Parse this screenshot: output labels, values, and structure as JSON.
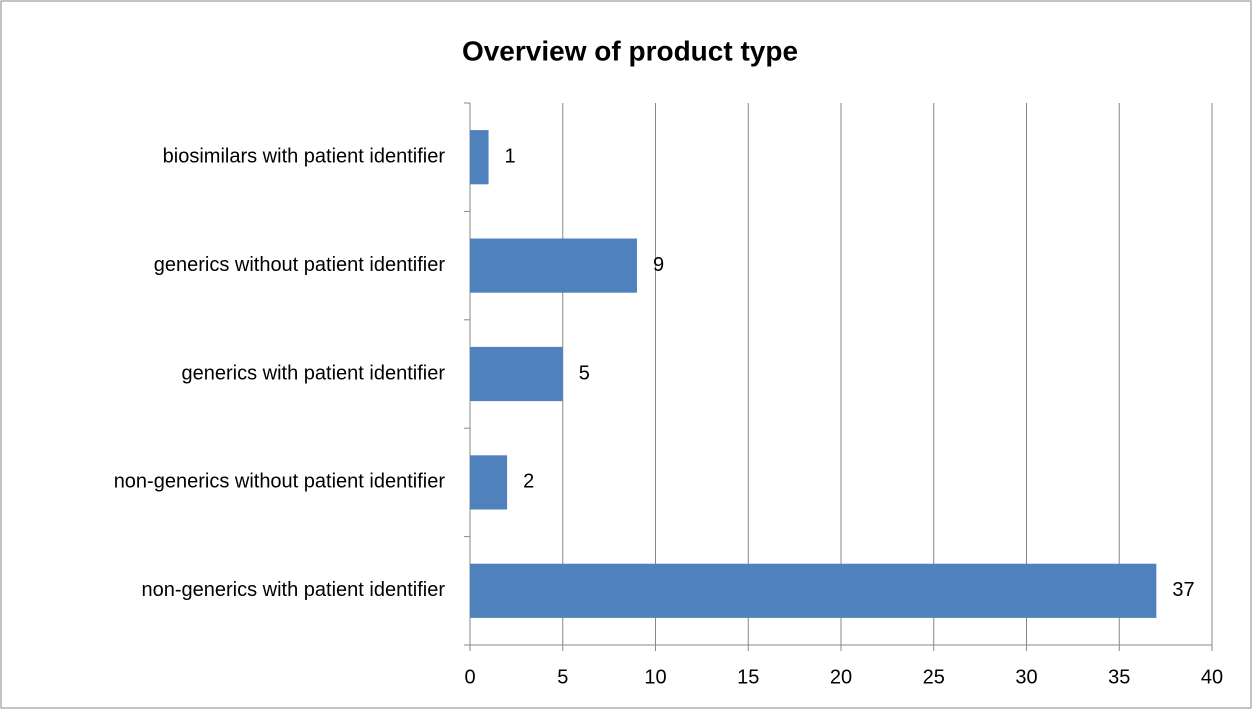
{
  "chart_data": {
    "type": "bar",
    "orientation": "horizontal",
    "title": "Overview of product type",
    "categories": [
      "biosimilars with patient identifier",
      "generics without patient identifier",
      "generics with patient identifier",
      "non-generics without patient identifier",
      "non-generics with patient identifier"
    ],
    "values": [
      1,
      9,
      5,
      2,
      37
    ],
    "color": "#4f81bd",
    "xlim": [
      0,
      40
    ],
    "xticks": [
      0,
      5,
      10,
      15,
      20,
      25,
      30,
      35,
      40
    ],
    "grid": true,
    "data_labels": true
  }
}
